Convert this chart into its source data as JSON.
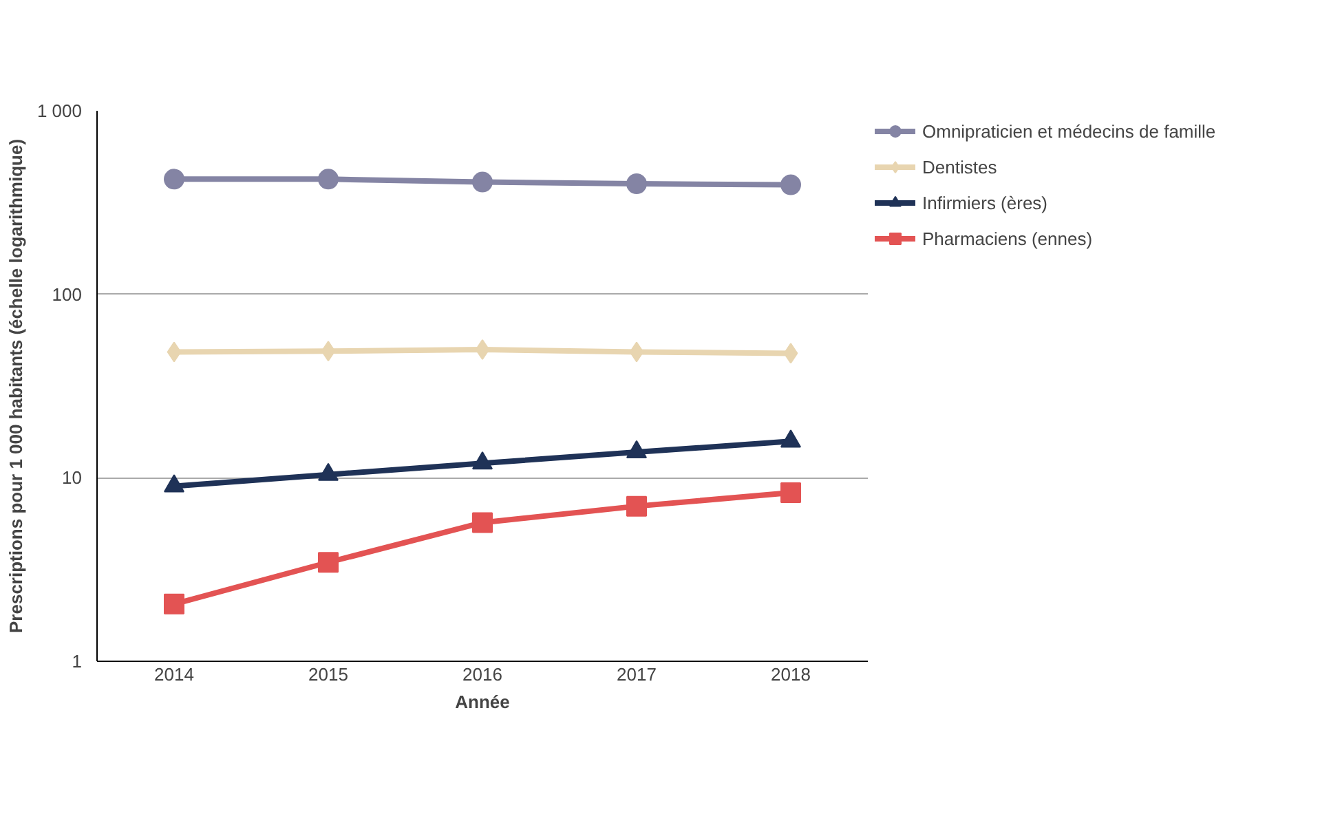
{
  "chart_data": {
    "type": "line",
    "xlabel": "Année",
    "ylabel": "Prescriptions pour 1 000 habitants (échelle logarithmique)",
    "categories": [
      "2014",
      "2015",
      "2016",
      "2017",
      "2018"
    ],
    "series": [
      {
        "name": "Omnipraticien et médecins de famille",
        "color": "#8484a4",
        "marker": "circle",
        "values": [
          424,
          424,
          409,
          400,
          395
        ]
      },
      {
        "name": "Dentistes",
        "color": "#e8d5b0",
        "marker": "diamond",
        "values": [
          48.5,
          49,
          50,
          48.5,
          47.7
        ]
      },
      {
        "name": "Infirmiers (ères)",
        "color": "#1f3257",
        "marker": "triangle",
        "values": [
          9.0,
          10.4,
          12,
          13.8,
          15.8
        ]
      },
      {
        "name": "Pharmaciens (ennes)",
        "color": "#e35353",
        "marker": "square",
        "values": [
          2.05,
          3.46,
          5.7,
          7.0,
          8.3
        ]
      }
    ],
    "log": "y",
    "ylim": [
      1,
      1000
    ],
    "yticks": [
      {
        "value": 1,
        "label": "1"
      },
      {
        "value": 10,
        "label": "10"
      },
      {
        "value": 100,
        "label": "100"
      },
      {
        "value": 1000,
        "label": "1 000"
      }
    ],
    "grid": "y",
    "legend": "top right",
    "line_style": "solid"
  }
}
